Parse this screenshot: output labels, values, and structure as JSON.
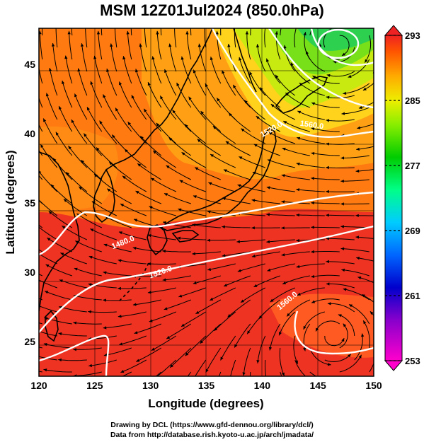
{
  "title": "MSM 12Z01Jul2024 (850.0hPa)",
  "map": {
    "xlabel": "Longitude (degrees)",
    "ylabel": "Latitude  (degrees)",
    "lon_range": [
      120,
      150
    ],
    "lat_range": [
      22.5,
      47.6
    ],
    "lon_ticks": [
      "120",
      "125",
      "130",
      "135",
      "140",
      "145",
      "150"
    ],
    "lat_ticks": [
      "25",
      "30",
      "35",
      "40",
      "45"
    ],
    "grid": true,
    "field": "temperature (shaded)",
    "overlays": [
      "wind streamlines",
      "geopotential height contours"
    ]
  },
  "contours": [
    {
      "label": "1480.0",
      "color": "#ffffff"
    },
    {
      "label": "1520.0",
      "color": "#ffffff"
    },
    {
      "label": "1560.0",
      "color": "#ffffff"
    },
    {
      "label": "1560.0",
      "color": "#ffffff"
    },
    {
      "label": "1520.0",
      "color": "#ffffff"
    }
  ],
  "colorbar": {
    "min": 253,
    "max": 293,
    "labels": [
      "293",
      "285",
      "277",
      "269",
      "261",
      "253"
    ],
    "colors": {
      "253": "#ff00cc",
      "258": "#8800cc",
      "262": "#0000cc",
      "266": "#0066ff",
      "270": "#00ccff",
      "274": "#00ff88",
      "278": "#00cc00",
      "282": "#88ee00",
      "285": "#eeee00",
      "288": "#ffaa00",
      "291": "#ff5500",
      "293": "#ee2222"
    }
  },
  "credits": {
    "line1": "Drawing by DCL (https://www.gfd-dennou.org/library/dcl/)",
    "line2": "Data from http://database.rish.kyoto-u.ac.jp/arch/jmadata/"
  }
}
